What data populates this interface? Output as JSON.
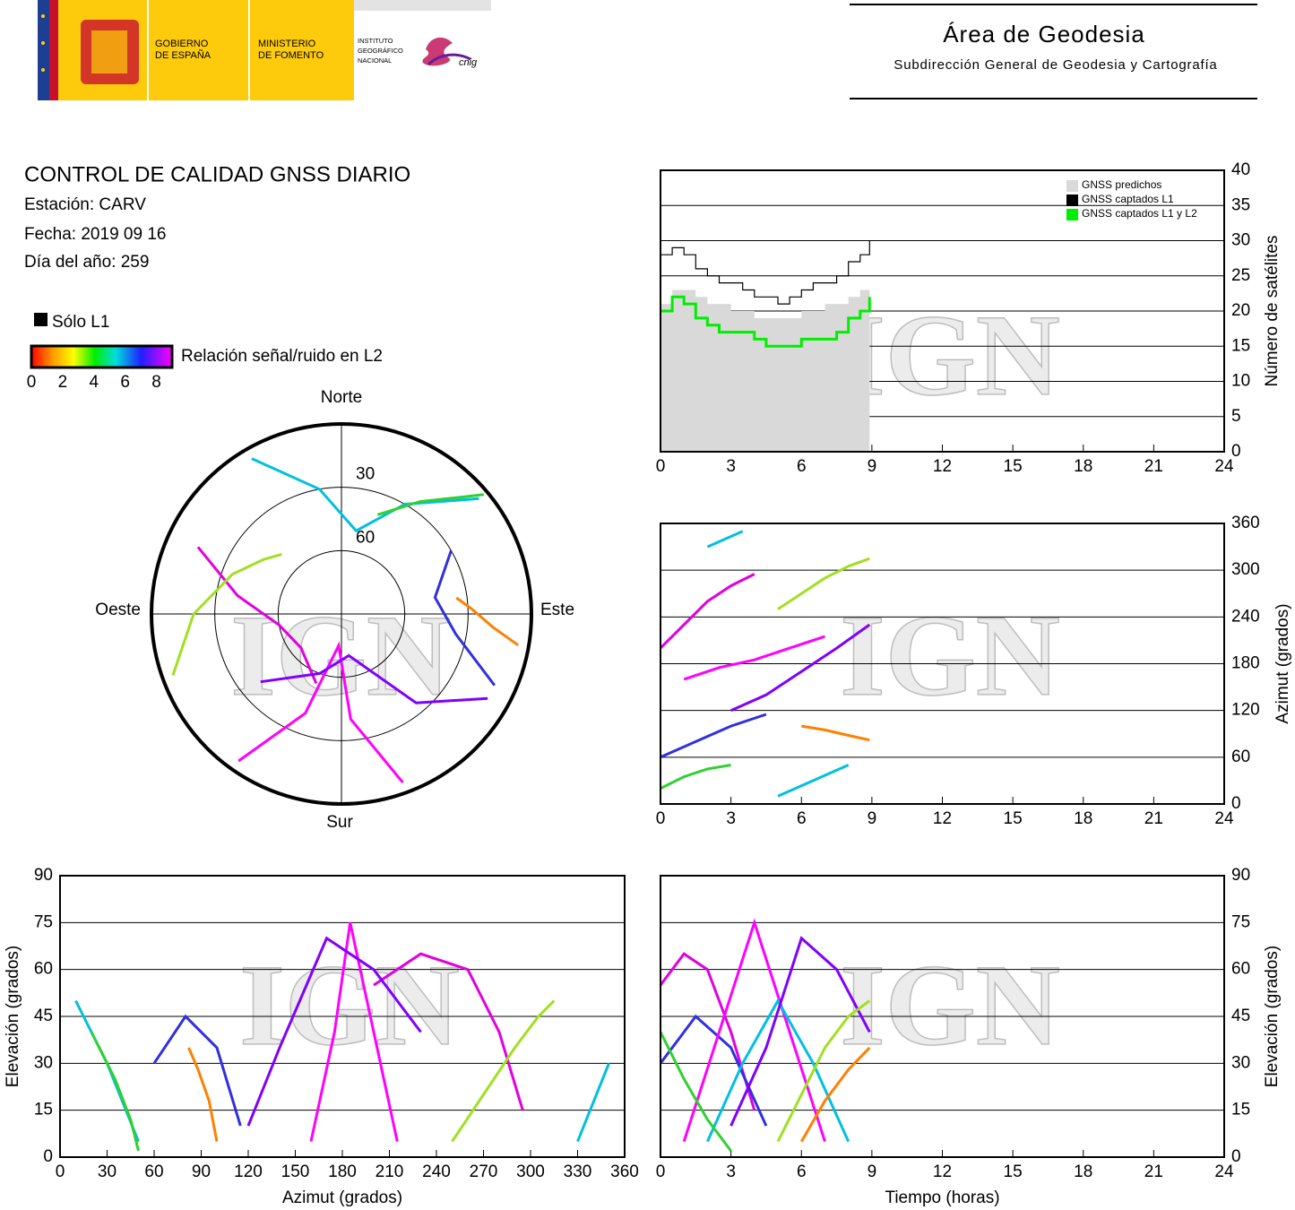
{
  "header": {
    "gobierno": [
      "GOBIERNO",
      "DE ESPAÑA"
    ],
    "ministerio": [
      "MINISTERIO",
      "DE FOMENTO"
    ],
    "instituto": [
      "INSTITUTO",
      "GEOGRÁFICO",
      "NACIONAL"
    ],
    "cnig": "cnig",
    "area": "Área de Geodesia",
    "subdireccion": "Subdirección General de Geodesia y Cartografía"
  },
  "report": {
    "title": "CONTROL DE CALIDAD GNSS DIARIO",
    "station": "Estación: CARV",
    "date": "Fecha: 2019 09 16",
    "doy": "Día del año: 259"
  },
  "legend": {
    "l1_only": "Sólo L1",
    "snr": "Relación señal/ruido en L2",
    "snr_ticks": [
      0,
      2,
      4,
      6,
      8
    ],
    "snr_lim": [
      0,
      9
    ]
  },
  "watermark": "IGN",
  "chart_data": [
    {
      "type": "polar",
      "directions": [
        "Norte",
        "Este",
        "Sur",
        "Oeste"
      ],
      "rlim": [
        0,
        90
      ],
      "rticks": [
        30,
        60
      ],
      "series": [
        {
          "color": "#e000e0",
          "x": [
            200,
            230,
            260,
            280,
            295
          ],
          "values": [
            55,
            65,
            60,
            40,
            15
          ]
        },
        {
          "color": "#3030e0",
          "x": [
            60,
            80,
            100,
            115
          ],
          "values": [
            30,
            45,
            35,
            10
          ]
        },
        {
          "color": "#ff00ff",
          "x": [
            160,
            175,
            185,
            200,
            215
          ],
          "values": [
            5,
            40,
            75,
            40,
            5
          ]
        },
        {
          "color": "#00c0e0",
          "x": [
            330,
            350,
            10,
            30,
            50
          ],
          "values": [
            5,
            30,
            50,
            30,
            5
          ]
        },
        {
          "color": "#8000ff",
          "x": [
            120,
            140,
            170,
            200,
            230
          ],
          "values": [
            10,
            35,
            70,
            60,
            40
          ]
        },
        {
          "color": "#30d030",
          "x": [
            20,
            35,
            45,
            50
          ],
          "values": [
            40,
            25,
            12,
            2
          ]
        },
        {
          "color": "#a0e020",
          "x": [
            250,
            270,
            290,
            305,
            315
          ],
          "values": [
            5,
            20,
            35,
            45,
            50
          ]
        },
        {
          "color": "#ff8000",
          "x": [
            100,
            95,
            88,
            82
          ],
          "values": [
            5,
            18,
            28,
            35
          ]
        }
      ]
    },
    {
      "type": "step",
      "ylabel": "Número de satélites",
      "xlim": [
        0,
        24
      ],
      "xticks": [
        0,
        3,
        6,
        9,
        12,
        15,
        18,
        21,
        24
      ],
      "ylim": [
        0,
        40
      ],
      "yticks": [
        0,
        5,
        10,
        15,
        20,
        25,
        30,
        35,
        40
      ],
      "grid": true,
      "legend": "upper right",
      "x": [
        0,
        0.5,
        1,
        1.5,
        2,
        2.5,
        3,
        3.5,
        4,
        4.5,
        5,
        5.5,
        6,
        6.5,
        7,
        7.5,
        8,
        8.5,
        8.9
      ],
      "series": [
        {
          "name": "GNSS predichos",
          "color": "#d9d9d9",
          "values": [
            21,
            23,
            23,
            22,
            21,
            21,
            20,
            20,
            19,
            19,
            19,
            19,
            20,
            20,
            21,
            21,
            22,
            23,
            24
          ]
        },
        {
          "name": "GNSS captados L1",
          "color": "#000000",
          "values": [
            28,
            29,
            28,
            26,
            25,
            24,
            24,
            23,
            22,
            22,
            21,
            22,
            23,
            24,
            24,
            25,
            27,
            28,
            30
          ]
        },
        {
          "name": "GNSS captados L1 y L2",
          "color": "#00ee00",
          "values": [
            20,
            22,
            21,
            19,
            18,
            17,
            17,
            17,
            16,
            15,
            15,
            15,
            16,
            16,
            16,
            17,
            19,
            20,
            22
          ]
        }
      ]
    },
    {
      "type": "line",
      "ylabel": "Azimut (grados)",
      "xlim": [
        0,
        24
      ],
      "xticks": [
        0,
        3,
        6,
        9,
        12,
        15,
        18,
        21,
        24
      ],
      "ylim": [
        0,
        360
      ],
      "yticks": [
        0,
        60,
        120,
        180,
        240,
        300,
        360
      ],
      "grid": true,
      "series": [
        {
          "color": "#e000e0",
          "x": [
            0,
            1,
            2,
            3,
            4
          ],
          "values": [
            200,
            230,
            260,
            280,
            295
          ]
        },
        {
          "color": "#3030e0",
          "x": [
            0,
            1.5,
            3,
            4.5
          ],
          "values": [
            60,
            80,
            100,
            115
          ]
        },
        {
          "color": "#ff00ff",
          "x": [
            1,
            2.5,
            4,
            5.5,
            7
          ],
          "values": [
            160,
            175,
            185,
            200,
            215
          ]
        },
        {
          "color": "#00c0e0",
          "x": [
            2,
            3.5,
            5,
            6.5,
            8
          ],
          "values": [
            330,
            350,
            10,
            30,
            50
          ]
        },
        {
          "color": "#8000ff",
          "x": [
            3,
            4.5,
            6,
            7.5,
            8.9
          ],
          "values": [
            120,
            140,
            170,
            200,
            230
          ]
        },
        {
          "color": "#30d030",
          "x": [
            0,
            1,
            2,
            3
          ],
          "values": [
            20,
            35,
            45,
            50
          ]
        },
        {
          "color": "#a0e020",
          "x": [
            5,
            6,
            7,
            8,
            8.9
          ],
          "values": [
            250,
            270,
            290,
            305,
            315
          ]
        },
        {
          "color": "#ff8000",
          "x": [
            6,
            7,
            8,
            8.9
          ],
          "values": [
            100,
            95,
            88,
            82
          ]
        }
      ]
    },
    {
      "type": "line",
      "xlabel": "Azimut (grados)",
      "ylabel": "Elevación (grados)",
      "xlim": [
        0,
        360
      ],
      "xticks": [
        0,
        30,
        60,
        90,
        120,
        150,
        180,
        210,
        240,
        270,
        300,
        330,
        360
      ],
      "ylim": [
        0,
        90
      ],
      "yticks": [
        0,
        15,
        30,
        45,
        60,
        75,
        90
      ],
      "grid": true,
      "series": [
        {
          "color": "#e000e0",
          "x": [
            200,
            230,
            260,
            280,
            295
          ],
          "values": [
            55,
            65,
            60,
            40,
            15
          ]
        },
        {
          "color": "#3030e0",
          "x": [
            60,
            80,
            100,
            115
          ],
          "values": [
            30,
            45,
            35,
            10
          ]
        },
        {
          "color": "#ff00ff",
          "x": [
            160,
            175,
            185,
            200,
            215
          ],
          "values": [
            5,
            40,
            75,
            40,
            5
          ]
        },
        {
          "color": "#00c0e0",
          "x": [
            330,
            350,
            10,
            30,
            50
          ],
          "values": [
            5,
            30,
            50,
            30,
            5
          ]
        },
        {
          "color": "#8000ff",
          "x": [
            120,
            140,
            170,
            200,
            230
          ],
          "values": [
            10,
            35,
            70,
            60,
            40
          ]
        },
        {
          "color": "#30d030",
          "x": [
            20,
            35,
            45,
            50
          ],
          "values": [
            40,
            25,
            12,
            2
          ]
        },
        {
          "color": "#a0e020",
          "x": [
            250,
            270,
            290,
            305,
            315
          ],
          "values": [
            5,
            20,
            35,
            45,
            50
          ]
        },
        {
          "color": "#ff8000",
          "x": [
            100,
            95,
            88,
            82
          ],
          "values": [
            5,
            18,
            28,
            35
          ]
        }
      ]
    },
    {
      "type": "line",
      "xlabel": "Tiempo (horas)",
      "ylabel": "Elevación (grados)",
      "xlim": [
        0,
        24
      ],
      "xticks": [
        0,
        3,
        6,
        9,
        12,
        15,
        18,
        21,
        24
      ],
      "ylim": [
        0,
        90
      ],
      "yticks": [
        0,
        15,
        30,
        45,
        60,
        75,
        90
      ],
      "grid": true,
      "series": [
        {
          "color": "#e000e0",
          "x": [
            0,
            1,
            2,
            3,
            4
          ],
          "values": [
            55,
            65,
            60,
            40,
            15
          ]
        },
        {
          "color": "#3030e0",
          "x": [
            0,
            1.5,
            3,
            4.5
          ],
          "values": [
            30,
            45,
            35,
            10
          ]
        },
        {
          "color": "#ff00ff",
          "x": [
            1,
            2.5,
            4,
            5.5,
            7
          ],
          "values": [
            5,
            40,
            75,
            40,
            5
          ]
        },
        {
          "color": "#00c0e0",
          "x": [
            2,
            3.5,
            5,
            6.5,
            8
          ],
          "values": [
            5,
            30,
            50,
            30,
            5
          ]
        },
        {
          "color": "#8000ff",
          "x": [
            3,
            4.5,
            6,
            7.5,
            8.9
          ],
          "values": [
            10,
            35,
            70,
            60,
            40
          ]
        },
        {
          "color": "#30d030",
          "x": [
            0,
            1,
            2,
            3
          ],
          "values": [
            40,
            25,
            12,
            2
          ]
        },
        {
          "color": "#a0e020",
          "x": [
            5,
            6,
            7,
            8,
            8.9
          ],
          "values": [
            5,
            20,
            35,
            45,
            50
          ]
        },
        {
          "color": "#ff8000",
          "x": [
            6,
            7,
            8,
            8.9
          ],
          "values": [
            5,
            18,
            28,
            35
          ]
        }
      ]
    }
  ]
}
